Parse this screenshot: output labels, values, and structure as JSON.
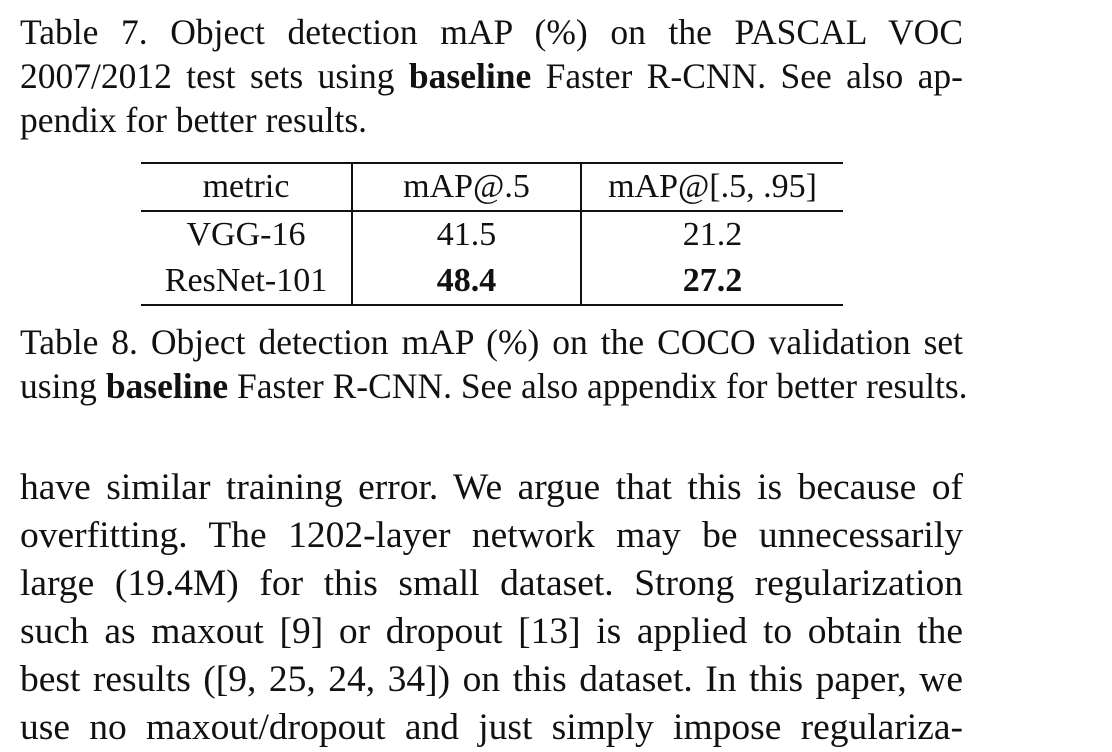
{
  "table7_caption": {
    "lines": [
      [
        "Table 7. Object detection mAP (%) on the PASCAL VOC",
        "",
        ""
      ],
      [
        "2007/2012 test sets using ",
        "baseline",
        " Faster R-CNN. See also ap-"
      ],
      [
        "pendix for better results.",
        "",
        ""
      ]
    ]
  },
  "table8": {
    "headers": [
      "metric",
      "mAP@.5",
      "mAP@[.5, .95]"
    ],
    "rows": [
      [
        "VGG-16",
        "41.5",
        "21.2"
      ],
      [
        "ResNet-101",
        "48.4",
        "27.2"
      ]
    ]
  },
  "table8_caption": {
    "lines": [
      [
        "Table 8. Object detection mAP (%) on the COCO validation set",
        "",
        ""
      ],
      [
        "using ",
        "baseline",
        " Faster R-CNN. See also appendix for better results."
      ]
    ]
  },
  "body_text": {
    "lines": [
      "have similar training error. We argue that this is because of",
      "overfitting. The 1202-layer network may be unnecessarily",
      "large (19.4M) for this small dataset. Strong regularization",
      "such as maxout [9] or dropout [13] is applied to obtain the",
      "best results ([9, 25, 24, 34]) on this dataset. In this paper, we",
      "use no maxout/dropout and just simply impose regulariza-"
    ]
  }
}
